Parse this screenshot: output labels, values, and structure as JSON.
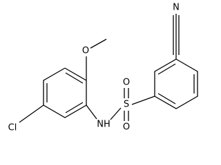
{
  "atoms": [
    {
      "label": "N"
    },
    {
      "label": "O"
    },
    {
      "label": "S"
    },
    {
      "label": "O"
    },
    {
      "label": "O"
    },
    {
      "label": "NH"
    },
    {
      "label": "Cl"
    }
  ]
}
